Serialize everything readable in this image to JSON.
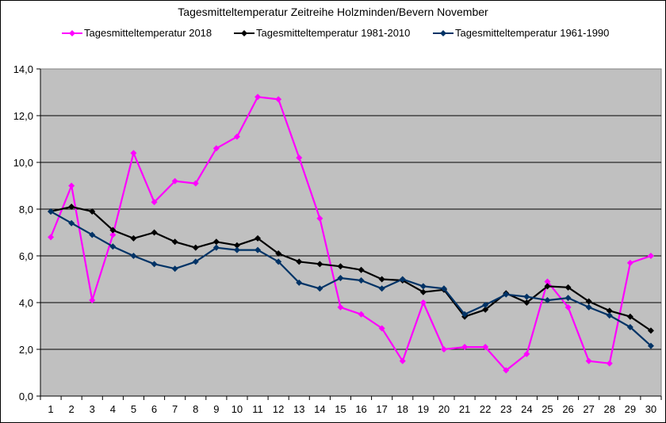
{
  "chart_data": {
    "type": "line",
    "title": "Tagesmitteltemperatur Zeitreihe Holzminden/Bevern  November",
    "xlabel": "",
    "ylabel": "",
    "x": [
      1,
      2,
      3,
      4,
      5,
      6,
      7,
      8,
      9,
      10,
      11,
      12,
      13,
      14,
      15,
      16,
      17,
      18,
      19,
      20,
      21,
      22,
      23,
      24,
      25,
      26,
      27,
      28,
      29,
      30
    ],
    "ylim": [
      0,
      14
    ],
    "yticks": [
      "0,0",
      "2,0",
      "4,0",
      "6,0",
      "8,0",
      "10,0",
      "12,0",
      "14,0"
    ],
    "grid": true,
    "legend_position": "top",
    "plot_background": "#C0C0C0",
    "series": [
      {
        "name": "Tagesmitteltemperatur 2018",
        "color": "#FF00FF",
        "values": [
          6.8,
          9.0,
          4.1,
          6.9,
          10.4,
          8.3,
          9.2,
          9.1,
          10.6,
          11.1,
          12.8,
          12.7,
          10.2,
          7.6,
          3.8,
          3.5,
          2.9,
          1.5,
          4.0,
          2.0,
          2.1,
          2.1,
          1.1,
          1.8,
          4.9,
          3.8,
          1.5,
          1.4,
          5.7,
          6.0
        ]
      },
      {
        "name": "Tagesmitteltemperatur 1981-2010",
        "color": "#000000",
        "values": [
          7.9,
          8.1,
          7.9,
          7.1,
          6.75,
          7.0,
          6.6,
          6.35,
          6.6,
          6.45,
          6.75,
          6.1,
          5.75,
          5.65,
          5.55,
          5.4,
          5.0,
          4.95,
          4.45,
          4.55,
          3.4,
          3.7,
          4.4,
          4.0,
          4.7,
          4.65,
          4.05,
          3.65,
          3.4,
          2.8
        ]
      },
      {
        "name": "Tagesmitteltemperatur 1961-1990",
        "color": "#003366",
        "values": [
          7.9,
          7.4,
          6.9,
          6.4,
          6.0,
          5.65,
          5.45,
          5.75,
          6.35,
          6.25,
          6.25,
          5.75,
          4.85,
          4.6,
          5.05,
          4.95,
          4.6,
          5.0,
          4.7,
          4.6,
          3.5,
          3.9,
          4.35,
          4.25,
          4.1,
          4.2,
          3.8,
          3.45,
          2.95,
          2.15
        ]
      }
    ]
  },
  "header": {
    "title": "Tagesmitteltemperatur Zeitreihe Holzminden/Bevern  November"
  },
  "legend": {
    "items": [
      {
        "label": "Tagesmitteltemperatur 2018",
        "color": "#FF00FF"
      },
      {
        "label": "Tagesmitteltemperatur 1981-2010",
        "color": "#000000"
      },
      {
        "label": "Tagesmitteltemperatur 1961-1990",
        "color": "#003366"
      }
    ]
  }
}
